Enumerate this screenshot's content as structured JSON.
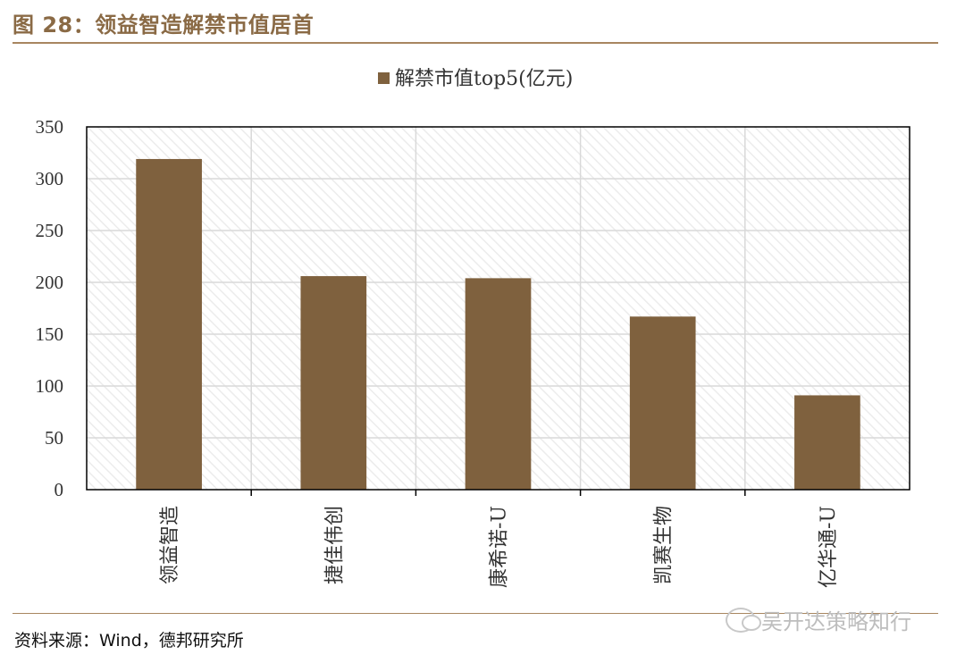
{
  "figure": {
    "title": "图 28：领益智造解禁市值居首",
    "source": "资料来源：Wind，德邦研究所",
    "watermark": "吴开达策略知行"
  },
  "chart_data": {
    "type": "bar",
    "title": "",
    "legend": [
      {
        "name": "解禁市值top5(亿元)",
        "color": "#7f613e"
      }
    ],
    "legend_position": "top-center",
    "categories": [
      "领益智造",
      "捷佳伟创",
      "康希诺-U",
      "凯赛生物",
      "亿华通-U"
    ],
    "series": [
      {
        "name": "解禁市值top5(亿元)",
        "values": [
          319,
          206,
          204,
          167,
          91
        ]
      }
    ],
    "y_ticks": [
      0,
      50,
      100,
      150,
      200,
      250,
      300,
      350
    ],
    "ylim": [
      0,
      350
    ],
    "xlabel": "",
    "ylabel": "",
    "grid": true,
    "bar_color": "#7f613e",
    "x_label_orientation": "vertical"
  }
}
